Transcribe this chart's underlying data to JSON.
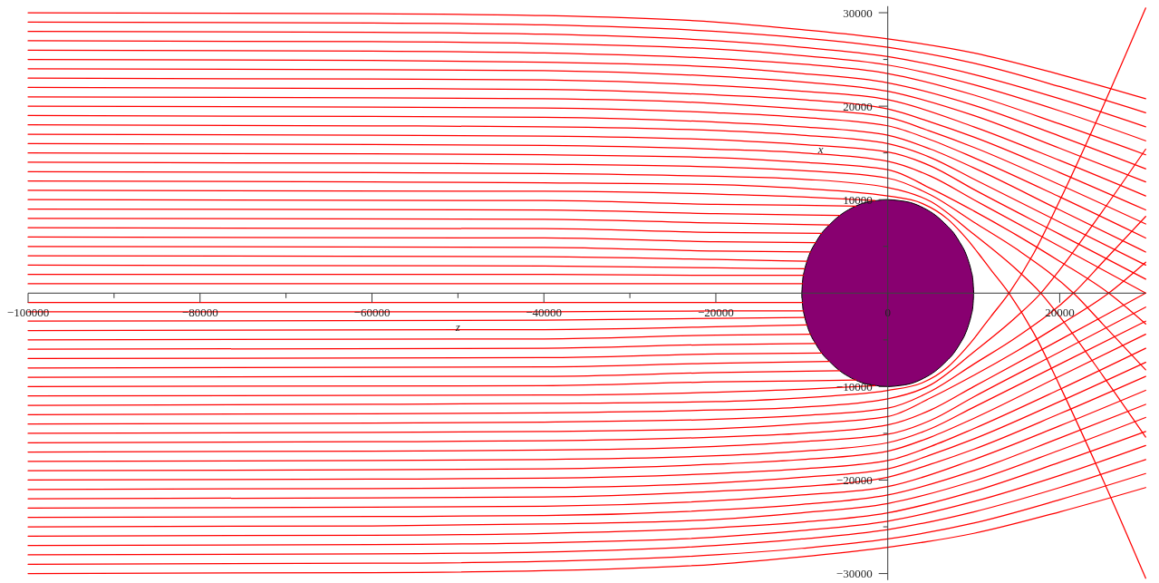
{
  "chart_data": {
    "type": "line",
    "xlabel": "z",
    "ylabel": "x",
    "xlim": [
      -100000,
      30000
    ],
    "ylim": [
      -30700,
      30700
    ],
    "xticks": [
      -100000,
      {
        "value": -90000,
        "label": null
      },
      -80000,
      {
        "value": -70000,
        "label": null
      },
      -60000,
      {
        "value": -50000,
        "label": null
      },
      -40000,
      {
        "value": -30000,
        "label": null
      },
      -20000,
      {
        "value": -10000,
        "label": null
      },
      0,
      {
        "value": 10000,
        "label": null
      },
      20000
    ],
    "yticks": [
      -30000,
      {
        "value": -25000,
        "label": null
      },
      -20000,
      {
        "value": -15000,
        "label": null
      },
      -10000,
      {
        "value": -5000,
        "label": null
      },
      {
        "value": 5000,
        "label": null
      },
      10000,
      {
        "value": 15000,
        "label": null
      },
      20000,
      {
        "value": 25000,
        "label": null
      },
      30000
    ],
    "x": [
      -100000,
      -60000,
      -40000,
      -20000,
      -10000,
      0,
      10000,
      20000,
      30000
    ],
    "series": [
      {
        "type": "area",
        "color": "#880070",
        "x": [
          -10000,
          -9900,
          -9700,
          -9400,
          -9000,
          -8400,
          -7700,
          -6800,
          -5600,
          -4200,
          -2600,
          -1300,
          0,
          1300,
          2600,
          4200,
          5600,
          6800,
          7700,
          8400,
          9000,
          9400,
          9700,
          9900,
          10000
        ],
        "values": [
          0,
          1400,
          2400,
          3400,
          4400,
          5400,
          6400,
          7300,
          8300,
          9100,
          9700,
          9900,
          10000,
          9900,
          9700,
          9100,
          8300,
          7300,
          6400,
          5400,
          4400,
          3400,
          2400,
          1400,
          0
        ]
      },
      {
        "type": "area",
        "color": "#880070",
        "x": [
          -10000,
          -9900,
          -9700,
          -9400,
          -9000,
          -8400,
          -7700,
          -6800,
          -5600,
          -4200,
          -2600,
          -1300,
          0,
          1300,
          2600,
          4200,
          5600,
          6800,
          7700,
          8400,
          9000,
          9400,
          9700,
          9900,
          10000
        ],
        "values": [
          0,
          -1400,
          -2400,
          -3400,
          -4400,
          -5400,
          -6400,
          -7300,
          -8300,
          -9100,
          -9700,
          -9900,
          -10000,
          -9900,
          -9700,
          -9100,
          -8300,
          -7300,
          -6400,
          -5400,
          -4400,
          -3400,
          -2400,
          -1400,
          0
        ]
      },
      {
        "color": "#ff0000",
        "values": [
          30000,
          29900,
          29700,
          29000,
          28200,
          27200,
          25700,
          23400,
          20800
        ]
      },
      {
        "color": "#ff0000",
        "values": [
          29000,
          28900,
          28700,
          28000,
          27300,
          26300,
          24600,
          22100,
          19300
        ]
      },
      {
        "color": "#ff0000",
        "values": [
          28000,
          27900,
          27700,
          27000,
          26300,
          25300,
          23400,
          20800,
          17800
        ]
      },
      {
        "color": "#ff0000",
        "values": [
          27000,
          26900,
          26700,
          26100,
          25400,
          24400,
          22300,
          19500,
          16300
        ]
      },
      {
        "color": "#ff0000",
        "values": [
          26000,
          25900,
          25700,
          25100,
          24500,
          23500,
          21200,
          18100,
          14800
        ]
      },
      {
        "color": "#ff0000",
        "values": [
          25000,
          24900,
          24700,
          24200,
          23500,
          22500,
          20100,
          16800,
          13300
        ]
      },
      {
        "color": "#ff0000",
        "values": [
          24000,
          23900,
          23800,
          23200,
          22600,
          21600,
          19000,
          15500,
          11900
        ]
      },
      {
        "color": "#ff0000",
        "values": [
          23000,
          22900,
          22800,
          22200,
          21600,
          20700,
          17800,
          14200,
          10400
        ]
      },
      {
        "color": "#ff0000",
        "x": [
          -100000,
          -60000,
          -40000,
          -20000,
          -10000,
          0,
          5000,
          10000,
          20000,
          30000
        ],
        "values": [
          22000,
          21900,
          21800,
          21200,
          20700,
          19700,
          18300,
          16700,
          12900,
          8900
        ]
      },
      {
        "color": "#ff0000",
        "x": [
          -100000,
          -60000,
          -40000,
          -20000,
          -10000,
          0,
          5000,
          10000,
          20000,
          30000
        ],
        "values": [
          21000,
          20900,
          20800,
          20300,
          19700,
          18800,
          17300,
          15600,
          11600,
          7400
        ]
      },
      {
        "color": "#ff0000",
        "x": [
          -100000,
          -60000,
          -40000,
          -20000,
          -10000,
          0,
          5000,
          10000,
          20000,
          30000
        ],
        "values": [
          20000,
          19900,
          19800,
          19300,
          18800,
          17900,
          16400,
          14500,
          10300,
          5900
        ]
      },
      {
        "color": "#ff0000",
        "x": [
          -100000,
          -60000,
          -40000,
          -20000,
          -10000,
          0,
          5000,
          10000,
          20000,
          30000
        ],
        "values": [
          19000,
          18900,
          18800,
          18300,
          17800,
          16900,
          15400,
          13400,
          8900,
          4400
        ]
      },
      {
        "color": "#ff0000",
        "x": [
          -100000,
          -60000,
          -40000,
          -20000,
          -10000,
          0,
          5000,
          10000,
          20000,
          30000
        ],
        "values": [
          18000,
          17900,
          17800,
          17400,
          16900,
          16000,
          14500,
          12200,
          7600,
          3000
        ]
      },
      {
        "color": "#ff0000",
        "x": [
          -100000,
          -60000,
          -40000,
          -20000,
          -10000,
          0,
          5000,
          10000,
          20000,
          30000
        ],
        "values": [
          17000,
          16900,
          16800,
          16400,
          15900,
          15100,
          13600,
          11100,
          6300,
          1500
        ]
      },
      {
        "color": "#ff0000",
        "x": [
          -100000,
          -60000,
          -40000,
          -20000,
          -10000,
          0,
          5000,
          10000,
          20000,
          30000
        ],
        "values": [
          16000,
          15900,
          15800,
          15400,
          15000,
          14100,
          12500,
          10000,
          5000,
          0
        ]
      },
      {
        "color": "#ff0000",
        "x": [
          -100000,
          -60000,
          -40000,
          -20000,
          -10000,
          0,
          5000,
          10000,
          15000,
          20000,
          25700,
          30000
        ],
        "values": [
          15000,
          14900,
          14800,
          14500,
          14000,
          13200,
          11200,
          8800,
          6200,
          3400,
          0,
          -3300
        ]
      },
      {
        "color": "#ff0000",
        "x": [
          -100000,
          -60000,
          -40000,
          -20000,
          -10000,
          0,
          5000,
          10000,
          15000,
          21600,
          25000,
          30000
        ],
        "values": [
          14000,
          13900,
          13800,
          13500,
          13100,
          12300,
          10500,
          7600,
          4700,
          0,
          -3300,
          -8200
        ]
      },
      {
        "color": "#ff0000",
        "x": [
          -100000,
          -60000,
          -40000,
          -20000,
          -10000,
          0,
          5000,
          10000,
          15000,
          17800,
          20000,
          25000,
          30000
        ],
        "values": [
          13000,
          12900,
          12800,
          12500,
          12200,
          11300,
          9800,
          6300,
          2500,
          0,
          -2500,
          -8800,
          -15400
        ]
      },
      {
        "color": "#ff0000",
        "x": [
          -100000,
          -60000,
          -40000,
          -20000,
          -10000,
          -5000,
          0,
          4000,
          7000,
          9000,
          10000,
          11000,
          12000,
          14100,
          17000,
          20000,
          25000,
          30000
        ],
        "values": [
          12000,
          11900,
          11800,
          11600,
          11200,
          10900,
          10400,
          9600,
          7900,
          6000,
          4900,
          3700,
          2500,
          0,
          -4300,
          -9900,
          -19900,
          -30500
        ]
      },
      {
        "color": "#ff0000",
        "x": [
          -100000,
          -40000,
          -20000,
          -10000,
          -1500
        ],
        "values": [
          11000,
          10900,
          10600,
          10300,
          9900
        ]
      },
      {
        "color": "#ff0000",
        "x": [
          -100000,
          -40000,
          -20000,
          -10000,
          -3700
        ],
        "values": [
          10000,
          9900,
          9500,
          9400,
          9300
        ]
      },
      {
        "color": "#ff0000",
        "x": [
          -100000,
          -40000,
          -20000,
          -5600
        ],
        "values": [
          9000,
          8900,
          8500,
          8300
        ]
      },
      {
        "color": "#ff0000",
        "x": [
          -100000,
          -40000,
          -20000,
          -6800
        ],
        "values": [
          8000,
          7900,
          7500,
          7300
        ]
      },
      {
        "color": "#ff0000",
        "x": [
          -100000,
          -40000,
          -20000,
          -7700
        ],
        "values": [
          7000,
          6900,
          6500,
          6400
        ]
      },
      {
        "color": "#ff0000",
        "x": [
          -100000,
          -40000,
          -20000,
          -8400
        ],
        "values": [
          6000,
          5900,
          5500,
          5400
        ]
      },
      {
        "color": "#ff0000",
        "x": [
          -100000,
          -40000,
          -20000,
          -9000
        ],
        "values": [
          5000,
          4900,
          4500,
          4400
        ]
      },
      {
        "color": "#ff0000",
        "x": [
          -100000,
          -40000,
          -20000,
          -9400
        ],
        "values": [
          4000,
          3900,
          3600,
          3400
        ]
      },
      {
        "color": "#ff0000",
        "x": [
          -100000,
          -40000,
          -20000,
          -9700
        ],
        "values": [
          3000,
          2900,
          2700,
          2600
        ]
      },
      {
        "color": "#ff0000",
        "x": [
          -100000,
          -40000,
          -20000,
          -9800
        ],
        "values": [
          2000,
          2000,
          1900,
          1900
        ]
      },
      {
        "color": "#ff0000",
        "x": [
          -100000,
          -40000,
          -20000,
          -9900
        ],
        "values": [
          1000,
          1000,
          1000,
          1000
        ]
      },
      {
        "color": "#ff0000",
        "x": [
          -100000,
          -40000,
          -20000,
          -9900
        ],
        "values": [
          -1000,
          -1000,
          -1000,
          -1000
        ]
      },
      {
        "color": "#ff0000",
        "x": [
          -100000,
          -40000,
          -20000,
          -9800
        ],
        "values": [
          -2000,
          -2000,
          -1900,
          -1900
        ]
      },
      {
        "color": "#ff0000",
        "x": [
          -100000,
          -40000,
          -20000,
          -9700
        ],
        "values": [
          -3000,
          -2900,
          -2700,
          -2600
        ]
      },
      {
        "color": "#ff0000",
        "x": [
          -100000,
          -40000,
          -20000,
          -9400
        ],
        "values": [
          -4000,
          -3900,
          -3600,
          -3400
        ]
      },
      {
        "color": "#ff0000",
        "x": [
          -100000,
          -40000,
          -20000,
          -9000
        ],
        "values": [
          -5000,
          -4900,
          -4500,
          -4400
        ]
      },
      {
        "color": "#ff0000",
        "x": [
          -100000,
          -40000,
          -20000,
          -8400
        ],
        "values": [
          -6000,
          -5900,
          -5500,
          -5400
        ]
      },
      {
        "color": "#ff0000",
        "x": [
          -100000,
          -40000,
          -20000,
          -7700
        ],
        "values": [
          -7000,
          -6900,
          -6500,
          -6400
        ]
      },
      {
        "color": "#ff0000",
        "x": [
          -100000,
          -40000,
          -20000,
          -6800
        ],
        "values": [
          -8000,
          -7900,
          -7500,
          -7300
        ]
      },
      {
        "color": "#ff0000",
        "x": [
          -100000,
          -40000,
          -20000,
          -5600
        ],
        "values": [
          -9000,
          -8900,
          -8500,
          -8300
        ]
      },
      {
        "color": "#ff0000",
        "x": [
          -100000,
          -40000,
          -20000,
          -10000,
          -3700
        ],
        "values": [
          -10000,
          -9900,
          -9500,
          -9400,
          -9300
        ]
      },
      {
        "color": "#ff0000",
        "x": [
          -100000,
          -40000,
          -20000,
          -10000,
          -1500
        ],
        "values": [
          -11000,
          -10900,
          -10600,
          -10300,
          -9900
        ]
      },
      {
        "color": "#ff0000",
        "x": [
          -100000,
          -60000,
          -40000,
          -20000,
          -10000,
          -5000,
          0,
          4000,
          7000,
          9000,
          10000,
          11000,
          12000,
          14100,
          17000,
          20000,
          25000,
          30000
        ],
        "values": [
          -12000,
          -11900,
          -11800,
          -11600,
          -11200,
          -10900,
          -10400,
          -9600,
          -7900,
          -6000,
          -4900,
          -3700,
          -2500,
          0,
          4300,
          9900,
          19900,
          30500
        ]
      },
      {
        "color": "#ff0000",
        "x": [
          -100000,
          -60000,
          -40000,
          -20000,
          -10000,
          0,
          5000,
          10000,
          15000,
          17800,
          20000,
          25000,
          30000
        ],
        "values": [
          -13000,
          -12900,
          -12800,
          -12500,
          -12200,
          -11300,
          -9800,
          -6300,
          -2500,
          0,
          2500,
          8800,
          15400
        ]
      },
      {
        "color": "#ff0000",
        "x": [
          -100000,
          -60000,
          -40000,
          -20000,
          -10000,
          0,
          5000,
          10000,
          15000,
          21600,
          25000,
          30000
        ],
        "values": [
          -14000,
          -13900,
          -13800,
          -13500,
          -13100,
          -12300,
          -10500,
          -7600,
          -4700,
          0,
          3300,
          8200
        ]
      },
      {
        "color": "#ff0000",
        "x": [
          -100000,
          -60000,
          -40000,
          -20000,
          -10000,
          0,
          5000,
          10000,
          15000,
          20000,
          25700,
          30000
        ],
        "values": [
          -15000,
          -14900,
          -14800,
          -14500,
          -14000,
          -13200,
          -11200,
          -8800,
          -6200,
          -3400,
          0,
          3300
        ]
      },
      {
        "color": "#ff0000",
        "x": [
          -100000,
          -60000,
          -40000,
          -20000,
          -10000,
          0,
          5000,
          10000,
          20000,
          30000
        ],
        "values": [
          -16000,
          -15900,
          -15800,
          -15400,
          -15000,
          -14100,
          -12500,
          -10000,
          -5000,
          0
        ]
      },
      {
        "color": "#ff0000",
        "x": [
          -100000,
          -60000,
          -40000,
          -20000,
          -10000,
          0,
          5000,
          10000,
          20000,
          30000
        ],
        "values": [
          -17000,
          -16900,
          -16800,
          -16400,
          -15900,
          -15100,
          -13600,
          -11100,
          -6300,
          -1500
        ]
      },
      {
        "color": "#ff0000",
        "x": [
          -100000,
          -60000,
          -40000,
          -20000,
          -10000,
          0,
          5000,
          10000,
          20000,
          30000
        ],
        "values": [
          -18000,
          -17900,
          -17800,
          -17400,
          -16900,
          -16000,
          -14500,
          -12200,
          -7600,
          -3000
        ]
      },
      {
        "color": "#ff0000",
        "x": [
          -100000,
          -60000,
          -40000,
          -20000,
          -10000,
          0,
          5000,
          10000,
          20000,
          30000
        ],
        "values": [
          -19000,
          -18900,
          -18800,
          -18300,
          -17800,
          -16900,
          -15400,
          -13400,
          -8900,
          -4400
        ]
      },
      {
        "color": "#ff0000",
        "x": [
          -100000,
          -60000,
          -40000,
          -20000,
          -10000,
          0,
          5000,
          10000,
          20000,
          30000
        ],
        "values": [
          -20000,
          -19900,
          -19800,
          -19300,
          -18800,
          -17900,
          -16400,
          -14500,
          -10300,
          -5900
        ]
      },
      {
        "color": "#ff0000",
        "x": [
          -100000,
          -60000,
          -40000,
          -20000,
          -10000,
          0,
          5000,
          10000,
          20000,
          30000
        ],
        "values": [
          -21000,
          -20900,
          -20800,
          -20300,
          -19700,
          -18800,
          -17300,
          -15600,
          -11600,
          -7400
        ]
      },
      {
        "color": "#ff0000",
        "x": [
          -100000,
          -60000,
          -40000,
          -20000,
          -10000,
          0,
          5000,
          10000,
          20000,
          30000
        ],
        "values": [
          -22000,
          -21900,
          -21800,
          -21200,
          -20700,
          -19700,
          -18300,
          -16700,
          -12900,
          -8900
        ]
      },
      {
        "color": "#ff0000",
        "values": [
          -23000,
          -22900,
          -22800,
          -22200,
          -21600,
          -20700,
          -17800,
          -14200,
          -10400
        ]
      },
      {
        "color": "#ff0000",
        "values": [
          -24000,
          -23900,
          -23800,
          -23200,
          -22600,
          -21600,
          -19000,
          -15500,
          -11900
        ]
      },
      {
        "color": "#ff0000",
        "values": [
          -25000,
          -24900,
          -24700,
          -24200,
          -23500,
          -22500,
          -20100,
          -16800,
          -13300
        ]
      },
      {
        "color": "#ff0000",
        "values": [
          -26000,
          -25900,
          -25700,
          -25100,
          -24500,
          -23500,
          -21200,
          -18100,
          -14800
        ]
      },
      {
        "color": "#ff0000",
        "values": [
          -27000,
          -26900,
          -26700,
          -26100,
          -25400,
          -24400,
          -22300,
          -19500,
          -16300
        ]
      },
      {
        "color": "#ff0000",
        "values": [
          -28000,
          -27900,
          -27700,
          -27000,
          -26300,
          -25300,
          -23400,
          -20800,
          -17800
        ]
      },
      {
        "color": "#ff0000",
        "values": [
          -29000,
          -28900,
          -28700,
          -28000,
          -27300,
          -26300,
          -24600,
          -22100,
          -19300
        ]
      },
      {
        "color": "#ff0000",
        "values": [
          -30000,
          -29900,
          -29700,
          -29000,
          -28200,
          -27200,
          -25700,
          -23400,
          -20800
        ]
      }
    ]
  }
}
